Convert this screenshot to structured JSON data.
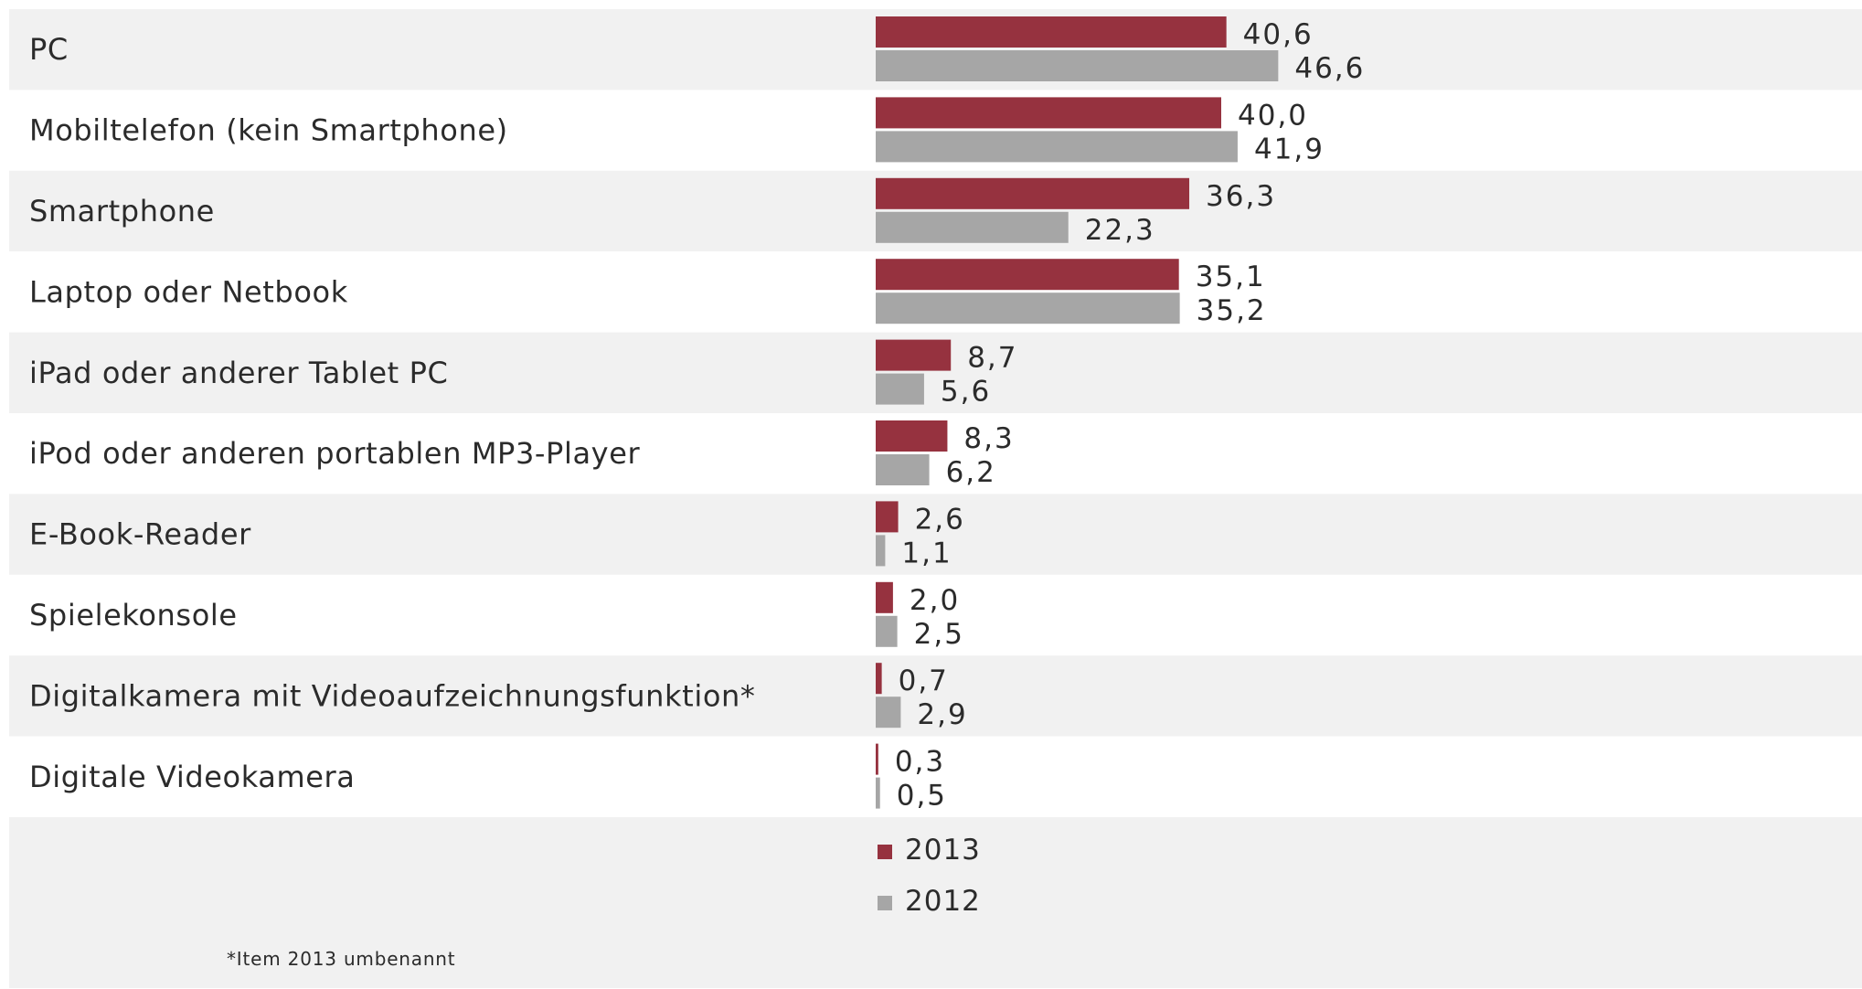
{
  "colors": {
    "series_2013": "#96323f",
    "series_2012": "#a6a6a6",
    "row_shaded": "#f1f1f1",
    "row_plain": "#ffffff",
    "text": "#2b2b2b"
  },
  "footnote": "*Item 2013 umbenannt",
  "chart_data": {
    "type": "bar",
    "orientation": "horizontal",
    "categories": [
      "PC",
      "Mobiltelefon (kein Smartphone)",
      "Smartphone",
      "Laptop oder Netbook",
      "iPad oder anderer Tablet PC",
      "iPod oder anderen portablen MP3-Player",
      "E-Book-Reader",
      "Spielekonsole",
      "Digitalkamera mit Videoaufzeichnungsfunktion*",
      "Digitale Videokamera"
    ],
    "series": [
      {
        "name": "2013",
        "color": "#96323f",
        "values": [
          40.6,
          40.0,
          36.3,
          35.1,
          8.7,
          8.3,
          2.6,
          2.0,
          0.7,
          0.3
        ],
        "labels": [
          "40,6",
          "40,0",
          "36,3",
          "35,1",
          "8,7",
          "8,3",
          "2,6",
          "2,0",
          "0,7",
          "0,3"
        ]
      },
      {
        "name": "2012",
        "color": "#a6a6a6",
        "values": [
          46.6,
          41.9,
          22.3,
          35.2,
          5.6,
          6.2,
          1.1,
          2.5,
          2.9,
          0.5
        ],
        "labels": [
          "46,6",
          "41,9",
          "22,3",
          "35,2",
          "5,6",
          "6,2",
          "1,1",
          "2,5",
          "2,9",
          "0,5"
        ]
      }
    ],
    "legend": {
      "placement": "bottom",
      "items": [
        "2013",
        "2012"
      ]
    },
    "grid": false,
    "axis_visible": false,
    "xlim": [
      0,
      100
    ]
  }
}
